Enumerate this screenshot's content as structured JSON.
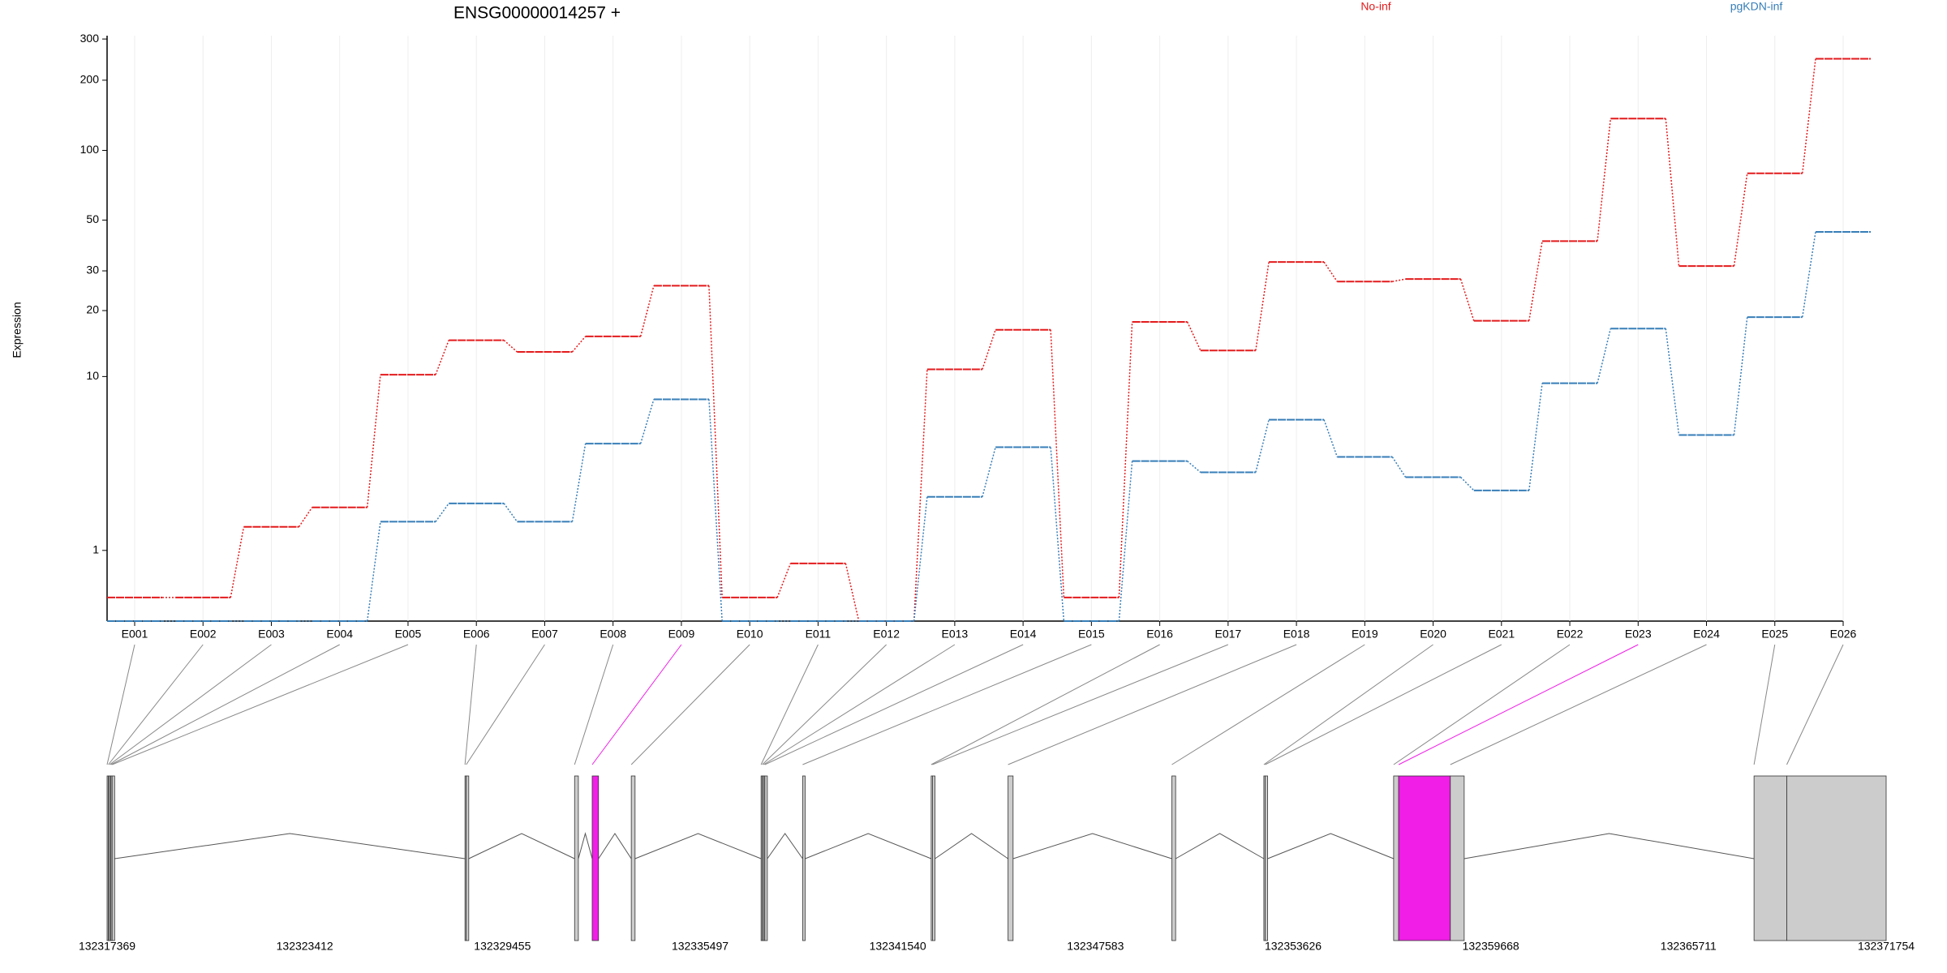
{
  "chart_data": {
    "type": "line",
    "title": "ENSG00000014257 +",
    "y_label": "Expression",
    "yscale": "log1p",
    "ylim": [
      0,
      310
    ],
    "yticks": [
      1,
      10,
      20,
      30,
      50,
      100,
      200,
      300
    ],
    "grid": true,
    "categories": [
      "E001",
      "E002",
      "E003",
      "E004",
      "E005",
      "E006",
      "E007",
      "E008",
      "E009",
      "E010",
      "E011",
      "E012",
      "E013",
      "E014",
      "E015",
      "E016",
      "E017",
      "E018",
      "E019",
      "E020",
      "E021",
      "E022",
      "E023",
      "E024",
      "E025",
      "E026"
    ],
    "series": [
      {
        "name": "No-inf",
        "color": "#e41a1c",
        "values": [
          0.26,
          0.26,
          1.52,
          2.05,
          10.2,
          14.7,
          13.0,
          15.3,
          25.8,
          0.26,
          0.76,
          0,
          10.8,
          16.4,
          0.26,
          17.8,
          13.2,
          32.8,
          26.9,
          27.6,
          18.0,
          40.5,
          137,
          31.5,
          79.7,
          247
        ]
      },
      {
        "name": "pgKDN-inf",
        "color": "#377eb8",
        "values": [
          0,
          0,
          0,
          0,
          1.65,
          2.17,
          1.65,
          4.7,
          7.8,
          0,
          0,
          0,
          2.38,
          4.5,
          0,
          3.8,
          3.3,
          6.2,
          4.0,
          3.1,
          2.6,
          9.3,
          16.6,
          5.2,
          18.7,
          44.4
        ]
      }
    ],
    "highlight_color": "#f01ee6",
    "highlight_exons": [
      8,
      22
    ],
    "exon_color": "#cccccc",
    "gene_xlim": [
      132317369,
      132371754
    ],
    "gene_xticks": [
      132317369,
      132323412,
      132329455,
      132335497,
      132341540,
      132347583,
      132353626,
      132359668,
      132365711,
      132371754
    ],
    "exons": [
      {
        "start": 132317369,
        "end": 132317408
      },
      {
        "start": 132317408,
        "end": 132317446
      },
      {
        "start": 132317446,
        "end": 132317485
      },
      {
        "start": 132317485,
        "end": 132317523
      },
      {
        "start": 132317523,
        "end": 132317600
      },
      {
        "start": 132328309,
        "end": 132328348
      },
      {
        "start": 132328348,
        "end": 132328425
      },
      {
        "start": 132331660,
        "end": 132331776
      },
      {
        "start": 132332199,
        "end": 132332392
      },
      {
        "start": 132333393,
        "end": 132333509
      },
      {
        "start": 132337361,
        "end": 132337399
      },
      {
        "start": 132337399,
        "end": 132337438
      },
      {
        "start": 132337438,
        "end": 132337476
      },
      {
        "start": 132337476,
        "end": 132337553
      },
      {
        "start": 132338632,
        "end": 132338709
      },
      {
        "start": 132342561,
        "end": 132342600
      },
      {
        "start": 132342600,
        "end": 132342677
      },
      {
        "start": 132344911,
        "end": 132345065
      },
      {
        "start": 132349918,
        "end": 132350034
      },
      {
        "start": 132352730,
        "end": 132352769
      },
      {
        "start": 132352769,
        "end": 132352846
      },
      {
        "start": 132356698,
        "end": 132356852
      },
      {
        "start": 132356852,
        "end": 132358431
      },
      {
        "start": 132358431,
        "end": 132358855
      },
      {
        "start": 132367715,
        "end": 132368716
      },
      {
        "start": 132368716,
        "end": 132371754
      }
    ]
  }
}
